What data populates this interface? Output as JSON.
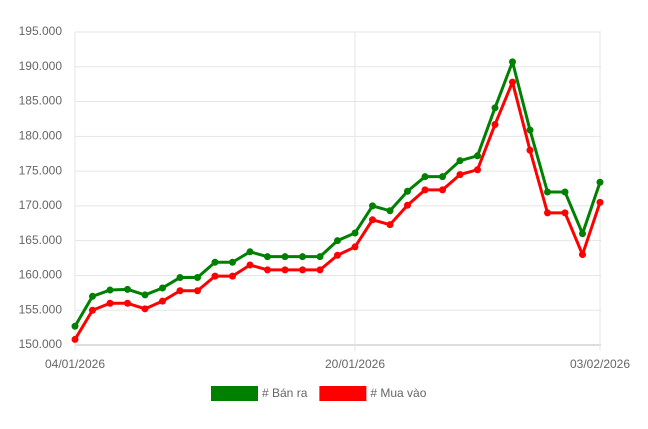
{
  "chart_data": {
    "type": "line",
    "categories": [
      "04/01/2026",
      null,
      null,
      null,
      null,
      null,
      null,
      null,
      null,
      null,
      null,
      null,
      null,
      null,
      null,
      null,
      "20/01/2026",
      null,
      null,
      null,
      null,
      null,
      null,
      null,
      null,
      null,
      null,
      null,
      null,
      null,
      "03/02/2026"
    ],
    "series": [
      {
        "name": "# Bán ra",
        "color": "#008000",
        "values": [
          152700,
          157000,
          157900,
          158000,
          157200,
          158200,
          159700,
          159700,
          161900,
          161900,
          163400,
          162700,
          162700,
          162700,
          162700,
          165000,
          166100,
          170000,
          169300,
          172100,
          174200,
          174200,
          176500,
          177200,
          184100,
          190700,
          180900,
          172000,
          172000,
          166000,
          173400
        ]
      },
      {
        "name": "# Mua vào",
        "color": "#ff0000",
        "values": [
          150800,
          155000,
          156000,
          156000,
          155200,
          156300,
          157800,
          157800,
          159900,
          159900,
          161500,
          160800,
          160800,
          160800,
          160800,
          162900,
          164100,
          168000,
          167300,
          170100,
          172300,
          172300,
          174500,
          175200,
          181700,
          187800,
          178000,
          169000,
          169000,
          163000,
          170500
        ]
      }
    ],
    "ylim": [
      150000,
      195000
    ],
    "yticks": [
      {
        "value": 150000,
        "label": "150.000"
      },
      {
        "value": 155000,
        "label": "155.000"
      },
      {
        "value": 160000,
        "label": "160.000"
      },
      {
        "value": 165000,
        "label": "165.000"
      },
      {
        "value": 170000,
        "label": "170.000"
      },
      {
        "value": 175000,
        "label": "175.000"
      },
      {
        "value": 180000,
        "label": "180.000"
      },
      {
        "value": 185000,
        "label": "185.000"
      },
      {
        "value": 190000,
        "label": "190.000"
      },
      {
        "value": 195000,
        "label": "195.000"
      }
    ],
    "grid": true,
    "legend": "bottom"
  }
}
